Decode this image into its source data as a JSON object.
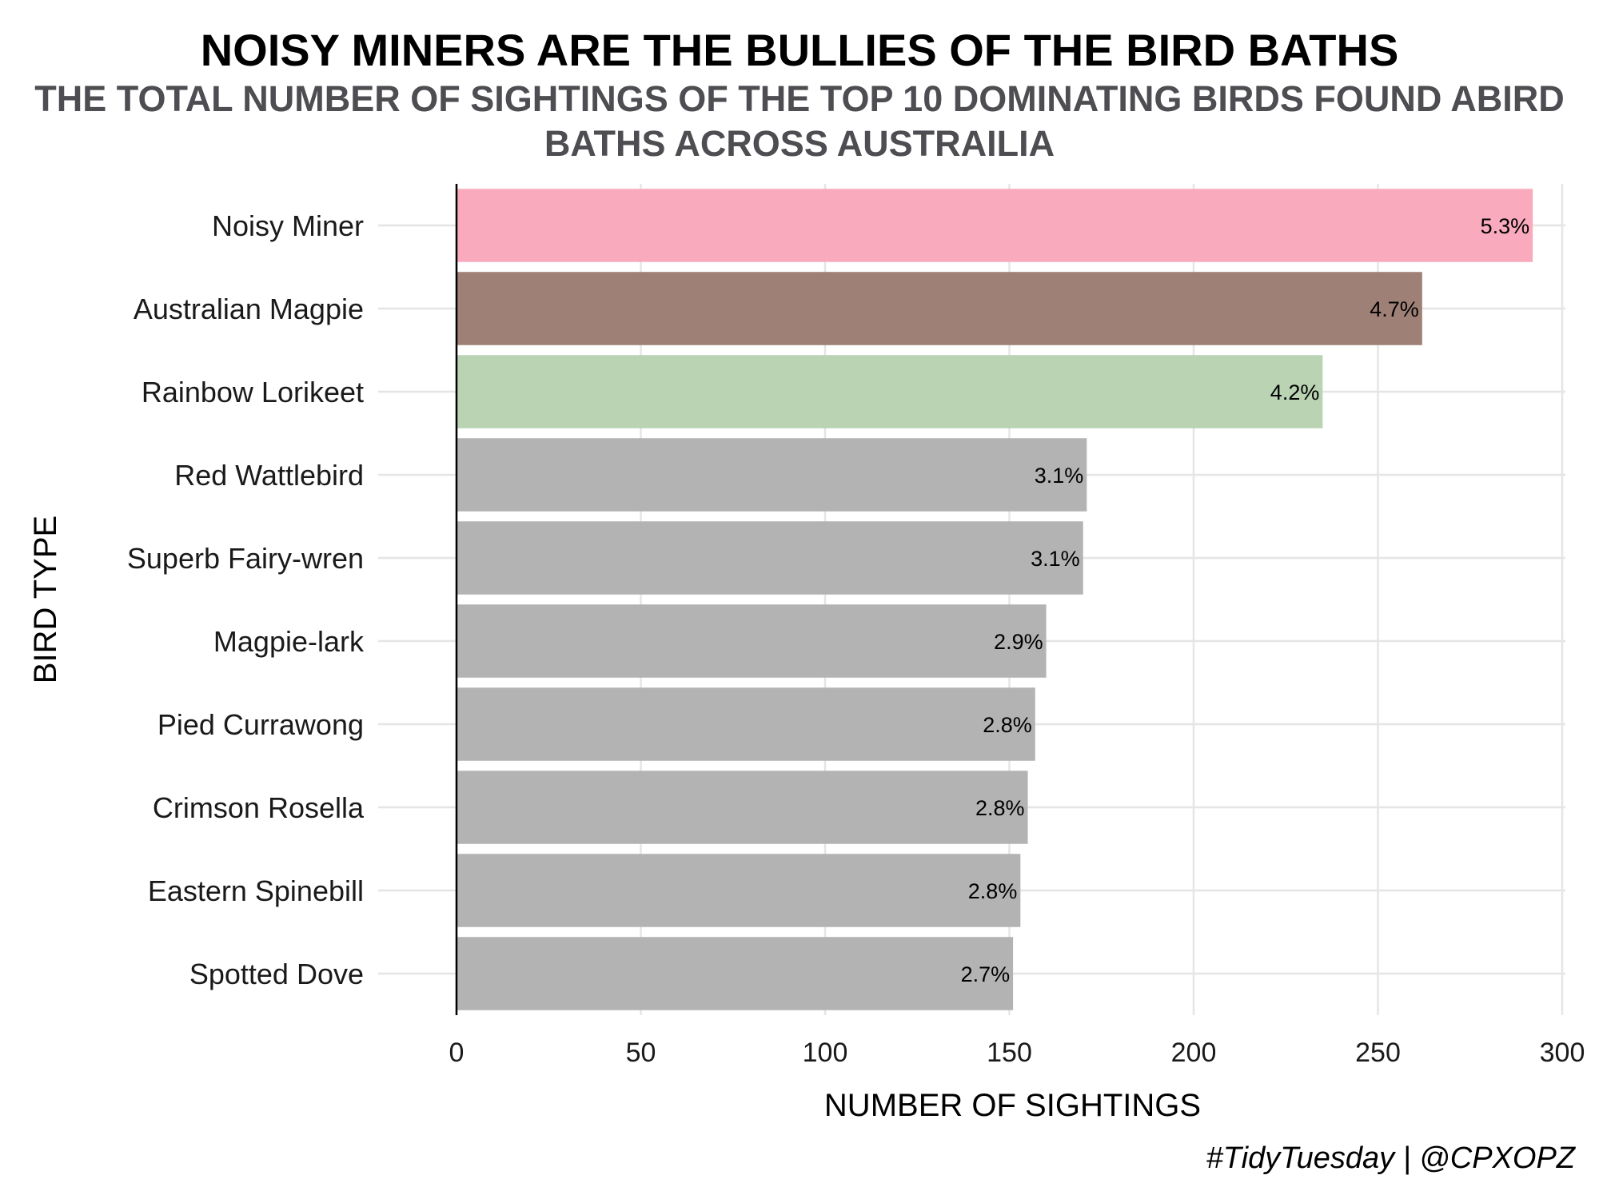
{
  "chart_data": {
    "type": "bar",
    "orientation": "horizontal",
    "title": "NOISY MINERS ARE THE BULLIES OF THE BIRD BATHS",
    "subtitle": "THE TOTAL NUMBER OF SIGHTINGS OF THE TOP 10 DOMINATING BIRDS FOUND ABIRD BATHS ACROSS AUSTRAILIA",
    "xlabel": "NUMBER OF SIGHTINGS",
    "ylabel": "BIRD TYPE",
    "caption": "#TidyTuesday | @CPXOPZ",
    "xlim": [
      0,
      300
    ],
    "xticks": [
      0,
      50,
      100,
      150,
      200,
      250,
      300
    ],
    "grid": true,
    "categories": [
      "Noisy Miner",
      "Australian Magpie",
      "Rainbow Lorikeet",
      "Red Wattlebird",
      "Superb Fairy-wren",
      "Magpie-lark",
      "Pied Currawong",
      "Crimson Rosella",
      "Eastern Spinebill",
      "Spotted Dove"
    ],
    "values": [
      292,
      262,
      235,
      171,
      170,
      160,
      157,
      155,
      153,
      151
    ],
    "labels": [
      "5.3%",
      "4.7%",
      "4.2%",
      "3.1%",
      "3.1%",
      "2.9%",
      "2.8%",
      "2.8%",
      "2.8%",
      "2.7%"
    ],
    "colors": [
      "#f9aabd",
      "#9e8076",
      "#b9d3b3",
      "#b3b3b3",
      "#b3b3b3",
      "#b3b3b3",
      "#b3b3b3",
      "#b3b3b3",
      "#b3b3b3",
      "#b3b3b3"
    ],
    "grid_color": "#e5e5e5",
    "axis_color": "#000000"
  }
}
